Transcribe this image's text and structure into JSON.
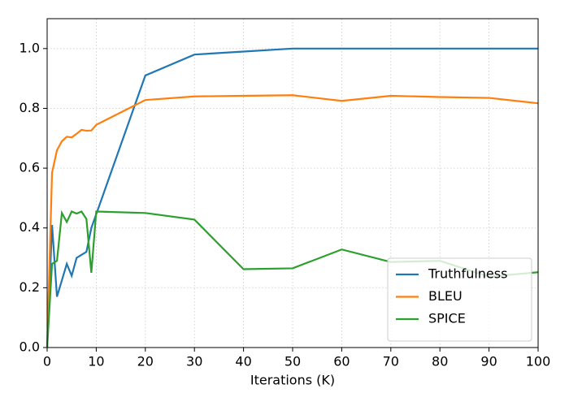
{
  "chart_data": {
    "type": "line",
    "x_label": "Iterations (K)",
    "x": [
      0,
      1,
      2,
      3,
      4,
      5,
      6,
      7,
      8,
      9,
      10,
      20,
      30,
      40,
      50,
      60,
      70,
      80,
      90,
      100
    ],
    "series": [
      {
        "name": "Truthfulness",
        "color": "#1f77b4",
        "values": [
          0.0,
          0.41,
          0.17,
          0.225,
          0.28,
          0.24,
          0.3,
          0.31,
          0.32,
          0.4,
          0.446,
          0.91,
          0.98,
          0.99,
          1.0,
          1.0,
          1.0,
          1.0,
          1.0,
          1.0
        ]
      },
      {
        "name": "BLEU",
        "color": "#ff7f0e",
        "values": [
          0.0,
          0.585,
          0.66,
          0.69,
          0.705,
          0.703,
          0.715,
          0.728,
          0.725,
          0.726,
          0.745,
          0.828,
          0.84,
          0.842,
          0.844,
          0.825,
          0.842,
          0.838,
          0.835,
          0.817
        ]
      },
      {
        "name": "SPICE",
        "color": "#2ca02c",
        "values": [
          0.0,
          0.28,
          0.29,
          0.45,
          0.42,
          0.455,
          0.448,
          0.455,
          0.43,
          0.25,
          0.455,
          0.45,
          0.428,
          0.262,
          0.265,
          0.328,
          0.286,
          0.29,
          0.237,
          0.252
        ]
      }
    ],
    "xlim": [
      0,
      100
    ],
    "xticks": [
      0,
      10,
      20,
      30,
      40,
      50,
      60,
      70,
      80,
      90,
      100
    ],
    "ylim": [
      0,
      1.1
    ],
    "yticks": [
      {
        "value": 0,
        "label": "0.0"
      },
      0.2,
      0.4,
      0.6,
      0.8,
      {
        "value": 1,
        "label": "1.0"
      }
    ],
    "grid": true,
    "legend": "lower right"
  }
}
